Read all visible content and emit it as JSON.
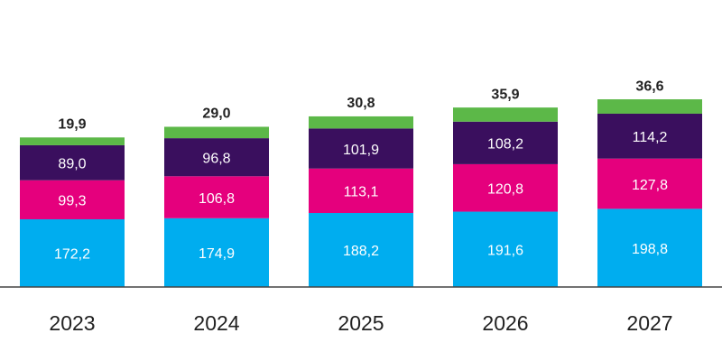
{
  "chart_data": {
    "type": "stacked_bar",
    "categories": [
      "2023",
      "2024",
      "2025",
      "2026",
      "2027"
    ],
    "series": [
      {
        "color": "#00adef",
        "values": [
          172.2,
          174.9,
          188.2,
          191.6,
          198.8
        ],
        "value_labels": [
          "172,2",
          "174,9",
          "188,2",
          "191,6",
          "198,8"
        ]
      },
      {
        "color": "#e5007d",
        "values": [
          99.3,
          106.8,
          113.1,
          120.8,
          127.8
        ],
        "value_labels": [
          "99,3",
          "106,8",
          "113,1",
          "120,8",
          "127,8"
        ]
      },
      {
        "color": "#3a0f5e",
        "values": [
          89.0,
          96.8,
          101.9,
          108.2,
          114.2
        ],
        "value_labels": [
          "89,0",
          "96,8",
          "101,9",
          "108,2",
          "114,2"
        ]
      },
      {
        "color": "#5cb848",
        "values": [
          19.9,
          29.0,
          30.8,
          35.9,
          36.6
        ],
        "value_labels": [
          "19,9",
          "29,0",
          "30,8",
          "35,9",
          "36,6"
        ]
      }
    ],
    "ylim": [
      0,
      730
    ]
  }
}
